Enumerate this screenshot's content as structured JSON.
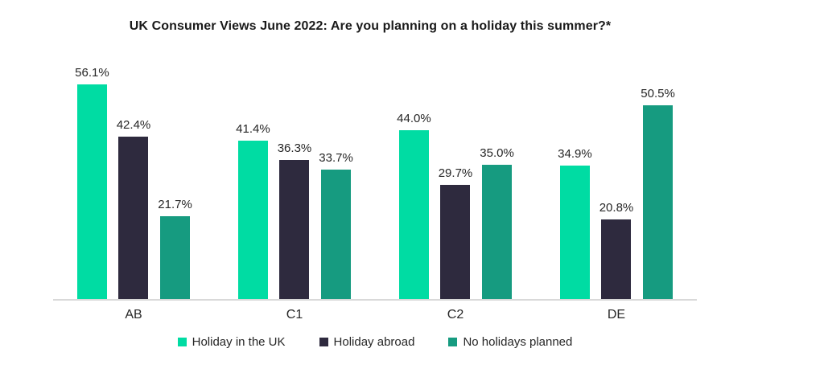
{
  "chart_data": {
    "type": "bar",
    "title": "UK Consumer Views June 2022: Are you planning on a holiday this summer?*",
    "categories": [
      "AB",
      "C1",
      "C2",
      "DE"
    ],
    "series": [
      {
        "name": "Holiday in the UK",
        "color": "#00DCA3",
        "values": [
          56.1,
          41.4,
          44.0,
          34.9
        ]
      },
      {
        "name": "Holiday abroad",
        "color": "#2E2A3E",
        "values": [
          42.4,
          36.3,
          29.7,
          20.8
        ]
      },
      {
        "name": "No holidays planned",
        "color": "#169B80",
        "values": [
          21.7,
          33.7,
          35.0,
          50.5
        ]
      }
    ],
    "value_suffix": "%",
    "data_labels": true,
    "xlabel": "",
    "ylabel": "",
    "ylim": [
      0,
      60
    ],
    "grid": false,
    "y_axis_visible": false,
    "axis_line_color": "#D9D9D9",
    "label_color": "#262626",
    "legend_position": "bottom"
  }
}
